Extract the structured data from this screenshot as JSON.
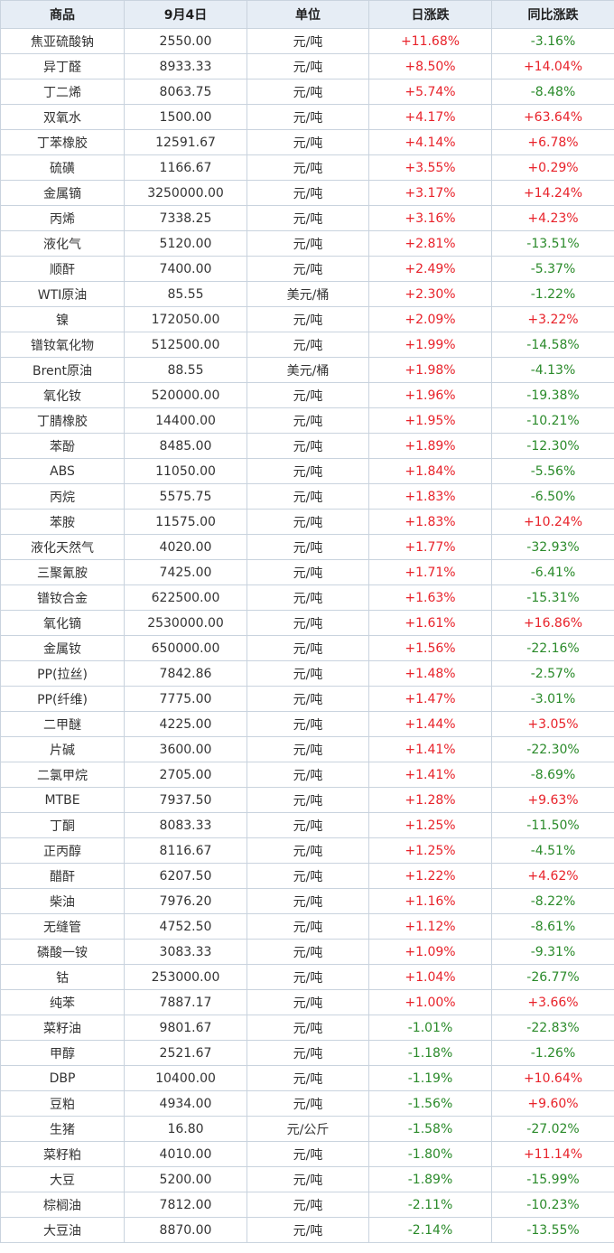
{
  "colors": {
    "up": "#e8222a",
    "down": "#2a8a2a",
    "header_bg": "#e6edf5",
    "border": "#c9d3de"
  },
  "header": {
    "name": "商品",
    "date": "9月4日",
    "unit": "单位",
    "daily": "日涨跌",
    "yoy": "同比涨跌"
  },
  "rows": [
    {
      "name": "焦亚硫酸钠",
      "price": "2550.00",
      "unit": "元/吨",
      "daily": "+11.68%",
      "yoy": "-3.16%"
    },
    {
      "name": "异丁醛",
      "price": "8933.33",
      "unit": "元/吨",
      "daily": "+8.50%",
      "yoy": "+14.04%"
    },
    {
      "name": "丁二烯",
      "price": "8063.75",
      "unit": "元/吨",
      "daily": "+5.74%",
      "yoy": "-8.48%"
    },
    {
      "name": "双氧水",
      "price": "1500.00",
      "unit": "元/吨",
      "daily": "+4.17%",
      "yoy": "+63.64%"
    },
    {
      "name": "丁苯橡胶",
      "price": "12591.67",
      "unit": "元/吨",
      "daily": "+4.14%",
      "yoy": "+6.78%"
    },
    {
      "name": "硫磺",
      "price": "1166.67",
      "unit": "元/吨",
      "daily": "+3.55%",
      "yoy": "+0.29%"
    },
    {
      "name": "金属镝",
      "price": "3250000.00",
      "unit": "元/吨",
      "daily": "+3.17%",
      "yoy": "+14.24%"
    },
    {
      "name": "丙烯",
      "price": "7338.25",
      "unit": "元/吨",
      "daily": "+3.16%",
      "yoy": "+4.23%"
    },
    {
      "name": "液化气",
      "price": "5120.00",
      "unit": "元/吨",
      "daily": "+2.81%",
      "yoy": "-13.51%"
    },
    {
      "name": "顺酐",
      "price": "7400.00",
      "unit": "元/吨",
      "daily": "+2.49%",
      "yoy": "-5.37%"
    },
    {
      "name": "WTI原油",
      "price": "85.55",
      "unit": "美元/桶",
      "daily": "+2.30%",
      "yoy": "-1.22%"
    },
    {
      "name": "镍",
      "price": "172050.00",
      "unit": "元/吨",
      "daily": "+2.09%",
      "yoy": "+3.22%"
    },
    {
      "name": "镨钕氧化物",
      "price": "512500.00",
      "unit": "元/吨",
      "daily": "+1.99%",
      "yoy": "-14.58%"
    },
    {
      "name": "Brent原油",
      "price": "88.55",
      "unit": "美元/桶",
      "daily": "+1.98%",
      "yoy": "-4.13%"
    },
    {
      "name": "氧化钕",
      "price": "520000.00",
      "unit": "元/吨",
      "daily": "+1.96%",
      "yoy": "-19.38%"
    },
    {
      "name": "丁腈橡胶",
      "price": "14400.00",
      "unit": "元/吨",
      "daily": "+1.95%",
      "yoy": "-10.21%"
    },
    {
      "name": "苯酚",
      "price": "8485.00",
      "unit": "元/吨",
      "daily": "+1.89%",
      "yoy": "-12.30%"
    },
    {
      "name": "ABS",
      "price": "11050.00",
      "unit": "元/吨",
      "daily": "+1.84%",
      "yoy": "-5.56%"
    },
    {
      "name": "丙烷",
      "price": "5575.75",
      "unit": "元/吨",
      "daily": "+1.83%",
      "yoy": "-6.50%"
    },
    {
      "name": "苯胺",
      "price": "11575.00",
      "unit": "元/吨",
      "daily": "+1.83%",
      "yoy": "+10.24%"
    },
    {
      "name": "液化天然气",
      "price": "4020.00",
      "unit": "元/吨",
      "daily": "+1.77%",
      "yoy": "-32.93%"
    },
    {
      "name": "三聚氰胺",
      "price": "7425.00",
      "unit": "元/吨",
      "daily": "+1.71%",
      "yoy": "-6.41%"
    },
    {
      "name": "镨钕合金",
      "price": "622500.00",
      "unit": "元/吨",
      "daily": "+1.63%",
      "yoy": "-15.31%"
    },
    {
      "name": "氧化镝",
      "price": "2530000.00",
      "unit": "元/吨",
      "daily": "+1.61%",
      "yoy": "+16.86%"
    },
    {
      "name": "金属钕",
      "price": "650000.00",
      "unit": "元/吨",
      "daily": "+1.56%",
      "yoy": "-22.16%"
    },
    {
      "name": "PP(拉丝)",
      "price": "7842.86",
      "unit": "元/吨",
      "daily": "+1.48%",
      "yoy": "-2.57%"
    },
    {
      "name": "PP(纤维)",
      "price": "7775.00",
      "unit": "元/吨",
      "daily": "+1.47%",
      "yoy": "-3.01%"
    },
    {
      "name": "二甲醚",
      "price": "4225.00",
      "unit": "元/吨",
      "daily": "+1.44%",
      "yoy": "+3.05%"
    },
    {
      "name": "片碱",
      "price": "3600.00",
      "unit": "元/吨",
      "daily": "+1.41%",
      "yoy": "-22.30%"
    },
    {
      "name": "二氯甲烷",
      "price": "2705.00",
      "unit": "元/吨",
      "daily": "+1.41%",
      "yoy": "-8.69%"
    },
    {
      "name": "MTBE",
      "price": "7937.50",
      "unit": "元/吨",
      "daily": "+1.28%",
      "yoy": "+9.63%"
    },
    {
      "name": "丁酮",
      "price": "8083.33",
      "unit": "元/吨",
      "daily": "+1.25%",
      "yoy": "-11.50%"
    },
    {
      "name": "正丙醇",
      "price": "8116.67",
      "unit": "元/吨",
      "daily": "+1.25%",
      "yoy": "-4.51%"
    },
    {
      "name": "醋酐",
      "price": "6207.50",
      "unit": "元/吨",
      "daily": "+1.22%",
      "yoy": "+4.62%"
    },
    {
      "name": "柴油",
      "price": "7976.20",
      "unit": "元/吨",
      "daily": "+1.16%",
      "yoy": "-8.22%"
    },
    {
      "name": "无缝管",
      "price": "4752.50",
      "unit": "元/吨",
      "daily": "+1.12%",
      "yoy": "-8.61%"
    },
    {
      "name": "磷酸一铵",
      "price": "3083.33",
      "unit": "元/吨",
      "daily": "+1.09%",
      "yoy": "-9.31%"
    },
    {
      "name": "钴",
      "price": "253000.00",
      "unit": "元/吨",
      "daily": "+1.04%",
      "yoy": "-26.77%"
    },
    {
      "name": "纯苯",
      "price": "7887.17",
      "unit": "元/吨",
      "daily": "+1.00%",
      "yoy": "+3.66%"
    },
    {
      "name": "菜籽油",
      "price": "9801.67",
      "unit": "元/吨",
      "daily": "-1.01%",
      "yoy": "-22.83%"
    },
    {
      "name": "甲醇",
      "price": "2521.67",
      "unit": "元/吨",
      "daily": "-1.18%",
      "yoy": "-1.26%"
    },
    {
      "name": "DBP",
      "price": "10400.00",
      "unit": "元/吨",
      "daily": "-1.19%",
      "yoy": "+10.64%"
    },
    {
      "name": "豆粕",
      "price": "4934.00",
      "unit": "元/吨",
      "daily": "-1.56%",
      "yoy": "+9.60%"
    },
    {
      "name": "生猪",
      "price": "16.80",
      "unit": "元/公斤",
      "daily": "-1.58%",
      "yoy": "-27.02%"
    },
    {
      "name": "菜籽粕",
      "price": "4010.00",
      "unit": "元/吨",
      "daily": "-1.80%",
      "yoy": "+11.14%"
    },
    {
      "name": "大豆",
      "price": "5200.00",
      "unit": "元/吨",
      "daily": "-1.89%",
      "yoy": "-15.99%"
    },
    {
      "name": "棕榈油",
      "price": "7812.00",
      "unit": "元/吨",
      "daily": "-2.11%",
      "yoy": "-10.23%"
    },
    {
      "name": "大豆油",
      "price": "8870.00",
      "unit": "元/吨",
      "daily": "-2.14%",
      "yoy": "-13.55%"
    }
  ]
}
